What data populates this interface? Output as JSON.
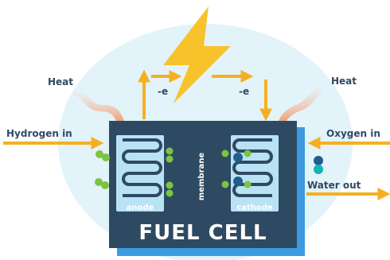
{
  "labels": {
    "heat_left": "Heat",
    "heat_right": "Heat",
    "electron_left": "-e",
    "electron_right": "-e",
    "hydrogen_in": "Hydrogen in",
    "oxygen_in": "Oxygen in",
    "water_out": "Water out",
    "anode": "anode",
    "cathode": "cathode",
    "membrane": "membrane",
    "fuel_cell": "FUEL CELL"
  },
  "icons": [
    "lightning-bolt-icon",
    "heat-plume-icon",
    "hydrogen-molecule-icon",
    "oxygen-molecule-icon",
    "water-molecule-icon"
  ],
  "colors": {
    "background_circle": "#e3f3fa",
    "cell_body": "#2e4a62",
    "cell_shadow": "#3c9be0",
    "electrode_panel": "#b9e2f4",
    "serpentine_channel": "#2e4a62",
    "arrow": "#f5b021",
    "lightning": "#f8c22b",
    "heat_plume": "#f0a47a",
    "hydrogen_atom": "#7bc442",
    "oxygen_atom": "#1f5f8f",
    "text": "#2e4a62"
  }
}
